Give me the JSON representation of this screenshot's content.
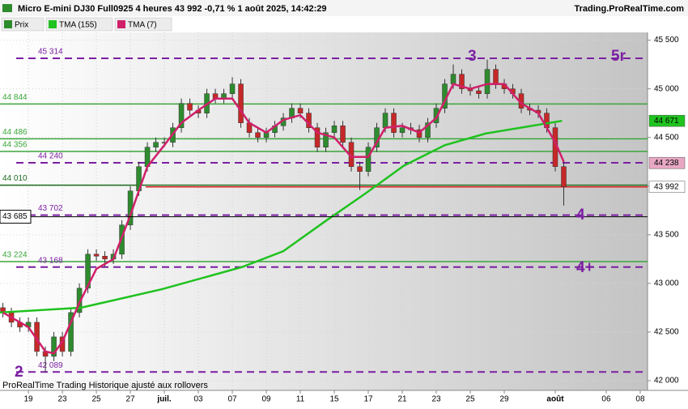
{
  "chart_data": {
    "type": "candlestick",
    "title": "Micro E-mini DJ30 Full0925 4 heures 43 992 -0,71 % 1 août 2025, 14:42:29",
    "source": "Trading.ProRealTime.com",
    "footer": "ProRealTime Trading  Historique ajusté aux rollovers",
    "xlim": [
      -1.67,
      36.43
    ],
    "xticks": [
      {
        "value": 0,
        "label": "19"
      },
      {
        "value": 2,
        "label": "23"
      },
      {
        "value": 4,
        "label": "25"
      },
      {
        "value": 6,
        "label": "27"
      },
      {
        "value": 8,
        "label": "juil."
      },
      {
        "value": 10,
        "label": "03"
      },
      {
        "value": 12,
        "label": "07"
      },
      {
        "value": 14,
        "label": "09"
      },
      {
        "value": 16,
        "label": "11"
      },
      {
        "value": 18,
        "label": "15"
      },
      {
        "value": 20,
        "label": "17"
      },
      {
        "value": 22,
        "label": "21"
      },
      {
        "value": 24,
        "label": "23"
      },
      {
        "value": 26,
        "label": "25"
      },
      {
        "value": 28,
        "label": "29"
      },
      {
        "value": 31,
        "label": "août"
      },
      {
        "value": 34,
        "label": "06"
      },
      {
        "value": 36,
        "label": "08"
      }
    ],
    "ylim": [
      41900,
      45580
    ],
    "yticks": [
      {
        "value": 42000,
        "label": "42 000"
      },
      {
        "value": 42500,
        "label": "42 500"
      },
      {
        "value": 43000,
        "label": "43 000"
      },
      {
        "value": 43500,
        "label": "43 500"
      },
      {
        "value": 44000,
        "label": "44 000"
      },
      {
        "value": 44500,
        "label": "44 500"
      },
      {
        "value": 45000,
        "label": "45 000"
      },
      {
        "value": 45500,
        "label": "45 500"
      }
    ],
    "series": [
      {
        "name": "Prix",
        "type": "candlestick",
        "color": "#2e8b2e",
        "down_color": "#c62828",
        "x": [
          -1.5,
          -1,
          -0.5,
          0,
          0.5,
          1,
          1.5,
          2,
          2.5,
          3,
          3.5,
          4,
          4.5,
          5,
          5.5,
          6,
          6.5,
          7,
          7.5,
          8,
          8.5,
          9,
          9.5,
          10,
          10.5,
          11,
          11.5,
          12,
          12.5,
          13,
          13.5,
          14,
          14.5,
          15,
          15.5,
          16,
          16.5,
          17,
          17.5,
          18,
          18.5,
          19,
          19.5,
          20,
          20.5,
          21,
          21.5,
          22,
          22.5,
          23,
          23.5,
          24,
          24.5,
          25,
          25.5,
          26,
          26.5,
          27,
          27.5,
          28,
          28.5,
          29,
          29.5,
          30,
          30.5,
          31,
          31.5
        ],
        "open": [
          42750,
          42700,
          42600,
          42550,
          42600,
          42300,
          42250,
          42450,
          42300,
          42700,
          42950,
          43300,
          43280,
          43250,
          43300,
          43600,
          43950,
          44200,
          44400,
          44450,
          44450,
          44600,
          44850,
          44780,
          44750,
          44950,
          44900,
          44950,
          45050,
          44650,
          44550,
          44500,
          44550,
          44620,
          44700,
          44800,
          44750,
          44600,
          44400,
          44550,
          44620,
          44450,
          44200,
          44150,
          44400,
          44600,
          44750,
          44550,
          44600,
          44580,
          44500,
          44650,
          44800,
          45050,
          45150,
          45000,
          44980,
          44950,
          45200,
          45050,
          45000,
          44950,
          44800,
          44780,
          44750,
          44600,
          44200
        ],
        "high": [
          42800,
          42750,
          42650,
          42650,
          42650,
          42350,
          42500,
          42500,
          42750,
          43000,
          43350,
          43350,
          43330,
          43350,
          43650,
          44000,
          44250,
          44450,
          44500,
          44500,
          44650,
          44900,
          44900,
          44830,
          45000,
          45000,
          45000,
          45120,
          45100,
          44700,
          44600,
          44600,
          44670,
          44750,
          44850,
          44850,
          44800,
          44650,
          44600,
          44670,
          44670,
          44500,
          44250,
          44450,
          44650,
          44800,
          44800,
          44650,
          44650,
          44630,
          44700,
          44850,
          45100,
          45250,
          45200,
          45050,
          45030,
          45300,
          45250,
          45100,
          45050,
          45000,
          44850,
          44830,
          44800,
          44650,
          44250
        ],
        "low": [
          42650,
          42550,
          42500,
          42500,
          42250,
          42089,
          42200,
          42250,
          42250,
          42650,
          42900,
          43230,
          43168,
          43200,
          43250,
          43550,
          43900,
          44150,
          44350,
          44400,
          44400,
          44550,
          44730,
          44700,
          44700,
          44850,
          44850,
          44900,
          44600,
          44500,
          44450,
          44450,
          44500,
          44570,
          44650,
          44700,
          44550,
          44350,
          44350,
          44500,
          44400,
          44150,
          43960,
          44100,
          44350,
          44550,
          44500,
          44500,
          44530,
          44450,
          44450,
          44600,
          44750,
          45000,
          44950,
          44930,
          44900,
          44900,
          45000,
          44950,
          44900,
          44750,
          44730,
          44700,
          44550,
          44150,
          43800
        ],
        "close": [
          42700,
          42600,
          42550,
          42600,
          42300,
          42250,
          42450,
          42300,
          42700,
          42950,
          43300,
          43280,
          43250,
          43300,
          43600,
          43950,
          44200,
          44400,
          44450,
          44450,
          44600,
          44850,
          44780,
          44750,
          44950,
          44900,
          44950,
          45050,
          44650,
          44550,
          44500,
          44550,
          44620,
          44700,
          44800,
          44750,
          44600,
          44400,
          44550,
          44620,
          44450,
          44200,
          44150,
          44400,
          44600,
          44750,
          44550,
          44600,
          44580,
          44500,
          44650,
          44800,
          45050,
          45150,
          45000,
          44980,
          44950,
          45200,
          45050,
          45000,
          44950,
          44800,
          44780,
          44750,
          44600,
          44200,
          43992
        ]
      },
      {
        "name": "TMA (155)",
        "type": "line",
        "color": "#1fc21f",
        "x": [
          -1.67,
          3.1,
          7.86,
          12.6,
          15,
          17.4,
          19.8,
          22.1,
          24.5,
          26.9,
          29.3,
          31.4
        ],
        "values": [
          42700,
          42750,
          42940,
          43170,
          43330,
          43630,
          43920,
          44210,
          44420,
          44540,
          44610,
          44671
        ]
      },
      {
        "name": "TMA (7)",
        "type": "line",
        "color": "#d0206a",
        "x": [
          -1.5,
          0,
          1,
          1.5,
          2,
          3,
          4,
          5,
          6,
          7,
          8,
          9,
          10,
          11,
          12,
          13,
          14,
          15,
          16,
          17,
          18,
          19,
          20,
          21,
          22,
          23,
          24,
          25,
          26,
          27,
          28,
          29,
          30,
          31,
          31.5
        ],
        "values": [
          42700,
          42550,
          42300,
          42280,
          42400,
          42800,
          43150,
          43250,
          43700,
          44200,
          44420,
          44650,
          44780,
          44900,
          44900,
          44650,
          44550,
          44680,
          44730,
          44550,
          44500,
          44300,
          44300,
          44600,
          44620,
          44550,
          44700,
          45050,
          45000,
          45050,
          45050,
          44850,
          44750,
          44450,
          44250
        ]
      }
    ],
    "levels": [
      {
        "value": 45314,
        "label": "45 314",
        "color": "#7b1fa2",
        "dash": true
      },
      {
        "value": 44844,
        "label": "44 844",
        "color": "#3aa63a",
        "dash": false
      },
      {
        "value": 44486,
        "label": "44 486",
        "color": "#3aa63a",
        "dash": false
      },
      {
        "value": 44356,
        "label": "44 356",
        "color": "#3aa63a",
        "dash": false
      },
      {
        "value": 44240,
        "label": "44 240",
        "color": "#7b1fa2",
        "dash": true
      },
      {
        "value": 44010,
        "label": "44 010",
        "color": "#1f6b1f",
        "dash": false
      },
      {
        "value": 43702,
        "label": "43 702",
        "color": "#7b1fa2",
        "dash": true
      },
      {
        "value": 43224,
        "label": "43 224",
        "color": "#3aa63a",
        "dash": false
      },
      {
        "value": 43168,
        "label": "43 168",
        "color": "#7b1fa2",
        "dash": true
      },
      {
        "value": 42089,
        "label": "42 089",
        "color": "#7b1fa2",
        "dash": true
      }
    ],
    "cursor": {
      "value": 43685,
      "label": "43 685"
    },
    "last_price": {
      "value": 43992,
      "color": "#e02020"
    },
    "price_markers": [
      {
        "value": 44671,
        "label": "44 671",
        "color": "#1fc21f"
      },
      {
        "value": 44238,
        "label": "44 238",
        "color": "#e8a8c4"
      },
      {
        "value": 43992,
        "label": "43 992",
        "color": "#ffffff"
      }
    ],
    "annotations": [
      "3",
      "5r",
      "4",
      "4+",
      "2"
    ]
  }
}
